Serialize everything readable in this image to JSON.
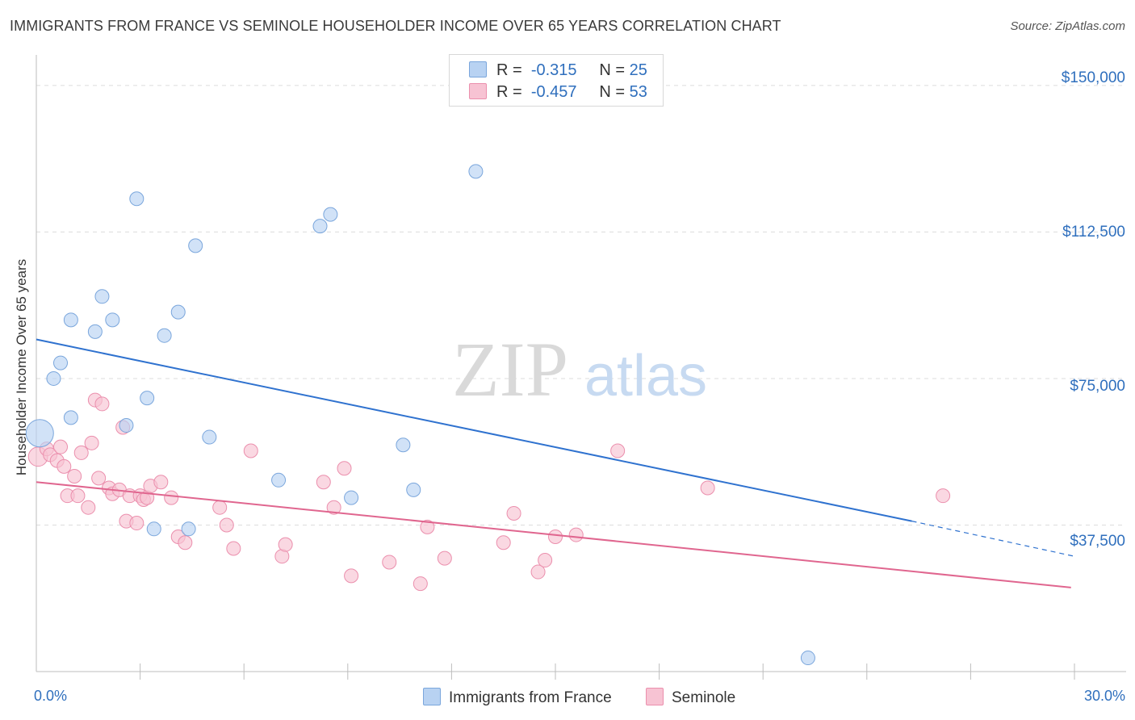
{
  "title": "IMMIGRANTS FROM FRANCE VS SEMINOLE HOUSEHOLDER INCOME OVER 65 YEARS CORRELATION CHART",
  "source": "Source: ZipAtlas.com",
  "watermark": {
    "zip": "ZIP",
    "atlas": "atlas"
  },
  "legend": {
    "rows": [
      {
        "r_label": "R =",
        "r_value": "-0.315",
        "n_label": "N =",
        "n_value": "25",
        "color": "#a9c8f0"
      },
      {
        "r_label": "R =",
        "r_value": "-0.457",
        "n_label": "N =",
        "n_value": "53",
        "color": "#f7b8cc"
      }
    ]
  },
  "bottom_legend": {
    "series1": "Immigrants from France",
    "series2": "Seminole"
  },
  "x_ticks": {
    "left": "0.0%",
    "right": "30.0%"
  },
  "y_ticks": [
    "$150,000",
    "$112,500",
    "$75,000",
    "$37,500"
  ],
  "colors": {
    "blue_fill": "#b8d2f2",
    "blue_stroke": "#7aa6dc",
    "blue_line": "#2f72cf",
    "pink_fill": "#f7c3d3",
    "pink_stroke": "#eb8fad",
    "pink_line": "#e0668f",
    "axis_text": "#2f6fbd",
    "grid": "#dcdcdc"
  },
  "chart_data": {
    "type": "scatter",
    "title": "IMMIGRANTS FROM FRANCE VS SEMINOLE HOUSEHOLDER INCOME OVER 65 YEARS CORRELATION CHART",
    "xlabel": "",
    "ylabel": "Householder Income Over 65 years",
    "xlim": [
      0,
      30
    ],
    "ylim": [
      0,
      157000
    ],
    "y_gridlines": [
      37500,
      75000,
      112500,
      150000
    ],
    "series": [
      {
        "name": "Immigrants from France",
        "r": -0.315,
        "n": 25,
        "points": [
          [
            0.1,
            61000,
            2.0
          ],
          [
            0.5,
            75000,
            1
          ],
          [
            0.7,
            79000,
            1
          ],
          [
            1.0,
            90000,
            1
          ],
          [
            1.0,
            65000,
            1
          ],
          [
            1.7,
            87000,
            1
          ],
          [
            1.9,
            96000,
            1
          ],
          [
            2.2,
            90000,
            1
          ],
          [
            2.6,
            63000,
            1
          ],
          [
            2.9,
            121000,
            1
          ],
          [
            3.2,
            70000,
            1
          ],
          [
            3.4,
            36500,
            1
          ],
          [
            3.7,
            86000,
            1
          ],
          [
            4.1,
            92000,
            1
          ],
          [
            4.4,
            36500,
            1
          ],
          [
            4.6,
            109000,
            1
          ],
          [
            5.0,
            60000,
            1
          ],
          [
            7.0,
            49000,
            1
          ],
          [
            8.2,
            114000,
            1
          ],
          [
            8.5,
            117000,
            1
          ],
          [
            9.1,
            44500,
            1
          ],
          [
            10.6,
            58000,
            1
          ],
          [
            10.9,
            46500,
            1
          ],
          [
            12.7,
            128000,
            1
          ],
          [
            22.3,
            3500,
            1
          ]
        ],
        "trend": {
          "x": [
            0,
            25.3
          ],
          "y": [
            85000,
            38500
          ]
        },
        "trend_dashed": {
          "x": [
            25.3,
            30
          ],
          "y": [
            38500,
            29500
          ]
        }
      },
      {
        "name": "Seminole",
        "r": -0.457,
        "n": 53,
        "points": [
          [
            0.05,
            55000,
            1.4
          ],
          [
            0.3,
            57000,
            1
          ],
          [
            0.4,
            55500,
            1
          ],
          [
            0.6,
            54000,
            1
          ],
          [
            0.7,
            57500,
            1
          ],
          [
            0.8,
            52500,
            1
          ],
          [
            0.9,
            45000,
            1
          ],
          [
            1.1,
            50000,
            1
          ],
          [
            1.2,
            45000,
            1
          ],
          [
            1.3,
            56000,
            1
          ],
          [
            1.5,
            42000,
            1
          ],
          [
            1.6,
            58500,
            1
          ],
          [
            1.7,
            69500,
            1
          ],
          [
            1.8,
            49500,
            1
          ],
          [
            1.9,
            68500,
            1
          ],
          [
            2.1,
            47000,
            1
          ],
          [
            2.2,
            45500,
            1
          ],
          [
            2.4,
            46500,
            1
          ],
          [
            2.5,
            62500,
            1
          ],
          [
            2.6,
            38500,
            1
          ],
          [
            2.7,
            45000,
            1
          ],
          [
            2.9,
            38000,
            1
          ],
          [
            3.0,
            45000,
            1
          ],
          [
            3.1,
            44000,
            1
          ],
          [
            3.2,
            44500,
            1
          ],
          [
            3.3,
            47500,
            1
          ],
          [
            3.6,
            48500,
            1
          ],
          [
            3.9,
            44500,
            1
          ],
          [
            4.1,
            34500,
            1
          ],
          [
            4.3,
            33000,
            1
          ],
          [
            5.3,
            42000,
            1
          ],
          [
            5.5,
            37500,
            1
          ],
          [
            5.7,
            31500,
            1
          ],
          [
            6.2,
            56500,
            1
          ],
          [
            7.1,
            29500,
            1
          ],
          [
            7.2,
            32500,
            1
          ],
          [
            8.3,
            48500,
            1
          ],
          [
            8.6,
            42000,
            1
          ],
          [
            8.9,
            52000,
            1
          ],
          [
            9.1,
            24500,
            1
          ],
          [
            10.2,
            28000,
            1
          ],
          [
            11.1,
            22500,
            1
          ],
          [
            11.3,
            37000,
            1
          ],
          [
            11.8,
            29000,
            1
          ],
          [
            13.5,
            33000,
            1
          ],
          [
            13.8,
            40500,
            1
          ],
          [
            14.5,
            25500,
            1
          ],
          [
            14.7,
            28500,
            1
          ],
          [
            15.0,
            34500,
            1
          ],
          [
            15.6,
            35000,
            1
          ],
          [
            16.8,
            56500,
            1
          ],
          [
            19.4,
            47000,
            1
          ],
          [
            26.2,
            45000,
            1
          ]
        ],
        "trend": {
          "x": [
            0,
            29.9
          ],
          "y": [
            48500,
            21500
          ]
        }
      }
    ]
  }
}
